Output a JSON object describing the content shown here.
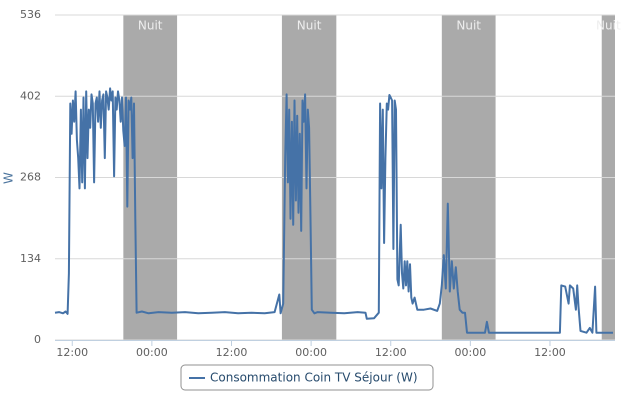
{
  "chart_data": {
    "type": "line",
    "y_axis_label": "W",
    "ylim": [
      0,
      536
    ],
    "yticks": [
      0,
      134,
      268,
      402,
      536
    ],
    "xlim": [
      9.4,
      93.8
    ],
    "xticks": [
      {
        "value": 12,
        "label": "12:00"
      },
      {
        "value": 24,
        "label": "00:00"
      },
      {
        "value": 36,
        "label": "12:00"
      },
      {
        "value": 48,
        "label": "00:00"
      },
      {
        "value": 60,
        "label": "12:00"
      },
      {
        "value": 72,
        "label": "00:00"
      },
      {
        "value": 84,
        "label": "12:00"
      }
    ],
    "grid": true,
    "bands": [
      {
        "from": 19.7,
        "to": 27.8,
        "label": "Nuit"
      },
      {
        "from": 43.6,
        "to": 51.8,
        "label": "Nuit"
      },
      {
        "from": 67.7,
        "to": 75.8,
        "label": "Nuit"
      },
      {
        "from": 91.8,
        "to": 93.8,
        "label": "Nuit"
      }
    ],
    "band_color": "#aaaaaa",
    "legend": "bottom",
    "x": [
      9.4,
      10,
      10.6,
      11,
      11.3,
      11.5,
      11.7,
      11.9,
      12.1,
      12.3,
      12.5,
      12.7,
      12.9,
      13.1,
      13.3,
      13.5,
      13.7,
      13.9,
      14.1,
      14.3,
      14.5,
      14.7,
      14.9,
      15.1,
      15.3,
      15.5,
      15.7,
      15.9,
      16.1,
      16.3,
      16.5,
      16.7,
      16.9,
      17.1,
      17.3,
      17.5,
      17.7,
      17.9,
      18.1,
      18.3,
      18.5,
      18.7,
      18.9,
      19.1,
      19.3,
      19.5,
      19.7,
      19.9,
      20.1,
      20.3,
      20.5,
      20.7,
      20.9,
      21.1,
      21.3,
      21.5,
      21.7,
      22.5,
      23.5,
      25,
      27,
      29,
      31,
      33,
      35,
      37,
      39,
      41,
      42.5,
      43.2,
      43.4,
      43.8,
      44.1,
      44.3,
      44.5,
      44.7,
      44.9,
      45.1,
      45.3,
      45.5,
      45.7,
      45.9,
      46.1,
      46.3,
      46.5,
      46.7,
      46.9,
      47.1,
      47.3,
      47.5,
      47.7,
      47.9,
      48.1,
      48.5,
      49,
      51,
      53,
      55,
      56.2,
      56.4,
      57.5,
      58.2,
      58.4,
      58.6,
      58.8,
      59,
      59.2,
      59.4,
      59.6,
      59.8,
      60,
      60.2,
      60.4,
      60.6,
      60.8,
      61,
      61.2,
      61.5,
      61.7,
      61.9,
      62.1,
      62.3,
      62.5,
      62.7,
      62.9,
      63.1,
      63.3,
      63.6,
      64,
      65,
      66,
      67,
      67.4,
      67.7,
      68,
      68.3,
      68.6,
      68.9,
      69.2,
      69.5,
      69.8,
      70.1,
      70.4,
      70.8,
      71.2,
      71.5,
      73,
      74.2,
      74.5,
      74.8,
      76,
      78,
      80,
      82,
      84,
      85.5,
      85.7,
      86.3,
      86.8,
      87,
      87.5,
      87.9,
      88.1,
      88.3,
      88.6,
      89.5,
      90,
      90.4,
      90.8,
      91,
      91.8,
      92.5,
      93.5
    ],
    "series": [
      {
        "name": "Consommation Coin TV Séjour (W)",
        "color": "#4572a7",
        "values": [
          45,
          46,
          44,
          47,
          43,
          110,
          390,
          340,
          395,
          360,
          410,
          330,
          300,
          250,
          380,
          260,
          400,
          250,
          410,
          300,
          380,
          350,
          405,
          390,
          260,
          390,
          400,
          360,
          410,
          350,
          395,
          405,
          300,
          410,
          400,
          380,
          415,
          395,
          410,
          270,
          400,
          380,
          410,
          395,
          360,
          400,
          345,
          320,
          400,
          220,
          395,
          380,
          400,
          300,
          390,
          200,
          45,
          47,
          44,
          46,
          45,
          46,
          44,
          45,
          46,
          44,
          45,
          44,
          46,
          75,
          44,
          60,
          300,
          405,
          260,
          380,
          200,
          360,
          190,
          395,
          230,
          370,
          210,
          340,
          180,
          395,
          360,
          405,
          250,
          380,
          350,
          200,
          50,
          44,
          46,
          45,
          44,
          46,
          45,
          35,
          36,
          45,
          390,
          250,
          380,
          160,
          300,
          390,
          380,
          404,
          400,
          395,
          150,
          395,
          380,
          100,
          90,
          190,
          110,
          85,
          130,
          90,
          130,
          80,
          125,
          70,
          60,
          70,
          50,
          50,
          52,
          48,
          60,
          90,
          140,
          85,
          225,
          80,
          130,
          85,
          120,
          80,
          50,
          45,
          45,
          12,
          12,
          12,
          30,
          12,
          12,
          12,
          12,
          12,
          12,
          12,
          90,
          88,
          60,
          90,
          85,
          50,
          90,
          55,
          15,
          12,
          20,
          12,
          88,
          12,
          12,
          12,
          12
        ]
      }
    ]
  }
}
